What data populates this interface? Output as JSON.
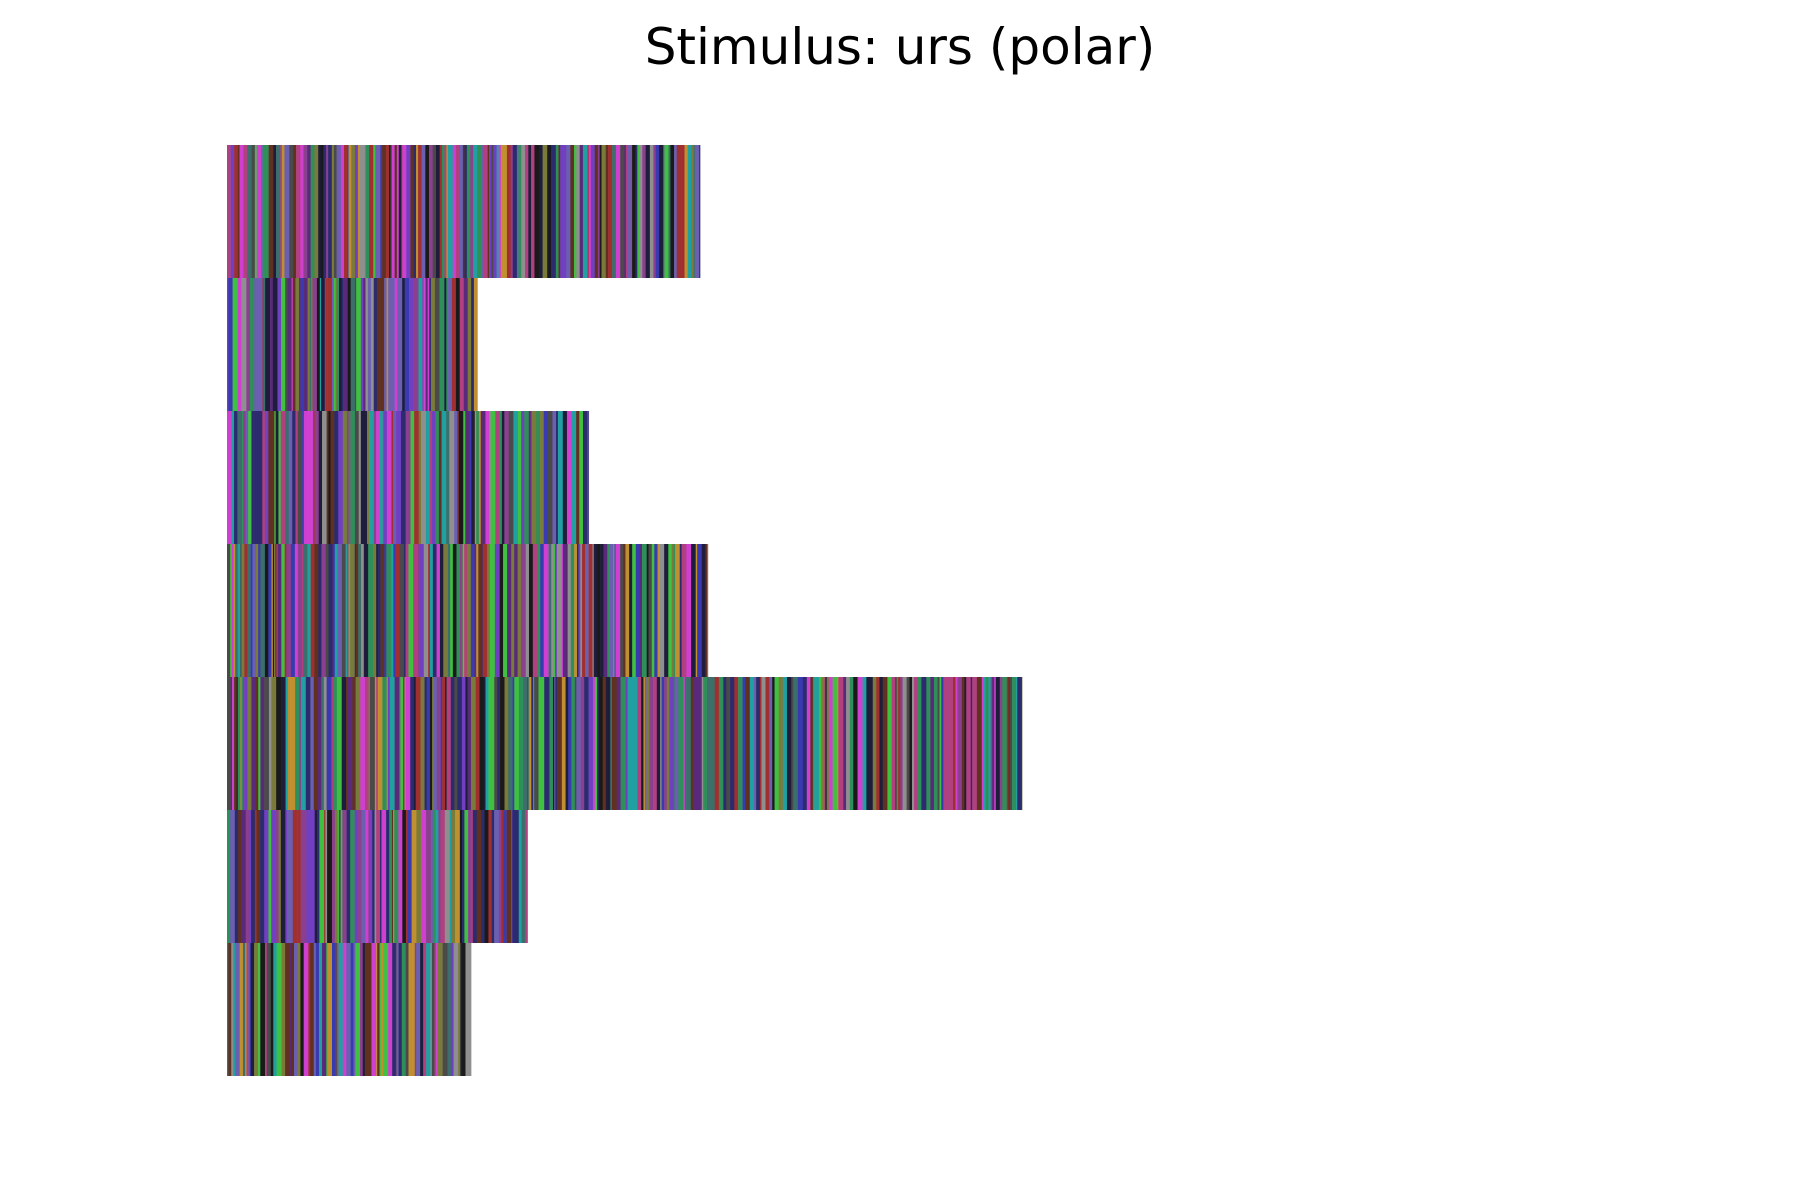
{
  "title": "Stimulus: urs (polar)",
  "stimulus": {
    "type": "colored-barcode-rows",
    "row_count": 7,
    "rows": [
      {
        "relative_length": 0.595
      },
      {
        "relative_length": 0.315
      },
      {
        "relative_length": 0.455
      },
      {
        "relative_length": 0.605
      },
      {
        "relative_length": 1.0
      },
      {
        "relative_length": 0.378
      },
      {
        "relative_length": 0.307
      }
    ],
    "palette": [
      "#2b2b6e",
      "#5a2a7a",
      "#8a3f8f",
      "#3c6f6b",
      "#4a4a4a",
      "#7a7a3a",
      "#b04080",
      "#2f8f5a",
      "#1e1e3c",
      "#6a5fb0",
      "#c09030",
      "#3a3ab0",
      "#8f8f8f",
      "#a03030",
      "#20a0a0",
      "#40c040",
      "#d040d0",
      "#603020",
      "#1a1a1a",
      "#7040c0"
    ]
  }
}
